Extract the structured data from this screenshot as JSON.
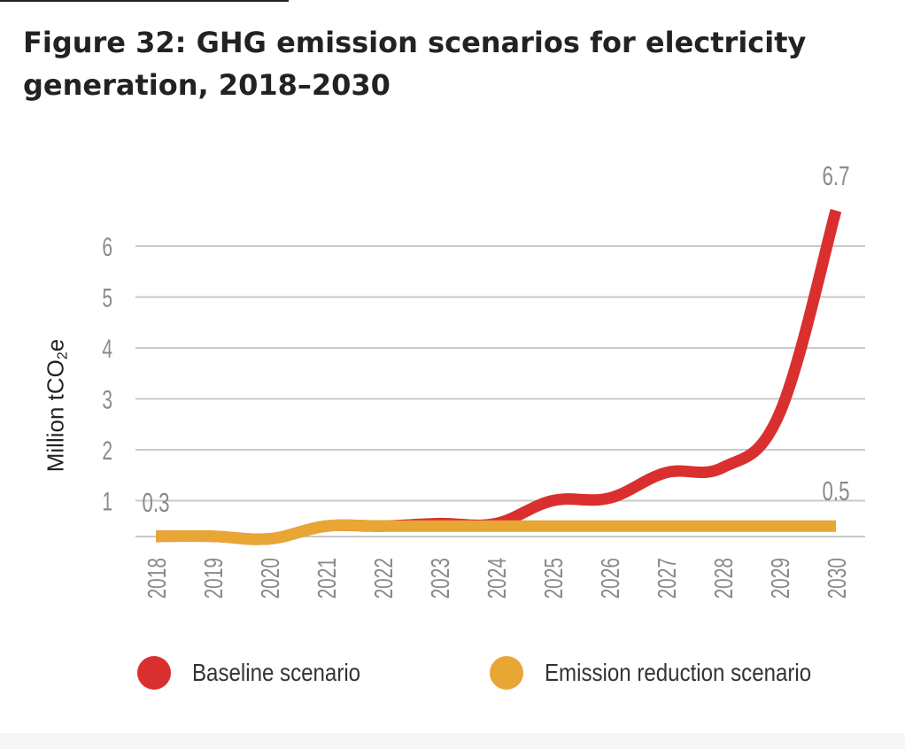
{
  "figure": {
    "title": "Figure 32: GHG emission scenarios for electricity generation, 2018–2030"
  },
  "chart_data": {
    "type": "line",
    "ylabel_main": "Million tCO",
    "ylabel_sub": "2",
    "ylabel_tail": "e",
    "x": [
      "2018",
      "2019",
      "2020",
      "2021",
      "2022",
      "2023",
      "2024",
      "2025",
      "2026",
      "2027",
      "2028",
      "2029",
      "2030"
    ],
    "yticks": [
      "1",
      "2",
      "3",
      "4",
      "5",
      "6"
    ],
    "ylim": [
      0,
      6.7
    ],
    "grid": true,
    "legend_position": "bottom",
    "series": [
      {
        "name": "Baseline scenario",
        "color": "#d9302f",
        "values": [
          0.3,
          0.3,
          0.25,
          0.5,
          0.5,
          0.55,
          0.55,
          1.0,
          1.05,
          1.55,
          1.65,
          2.7,
          6.7
        ],
        "end_label": "6.7"
      },
      {
        "name": "Emission reduction scenario",
        "color": "#e8a634",
        "values": [
          0.3,
          0.3,
          0.25,
          0.5,
          0.5,
          0.5,
          0.5,
          0.5,
          0.5,
          0.5,
          0.5,
          0.5,
          0.5
        ],
        "start_label": "0.3",
        "end_label": "0.5"
      }
    ]
  }
}
